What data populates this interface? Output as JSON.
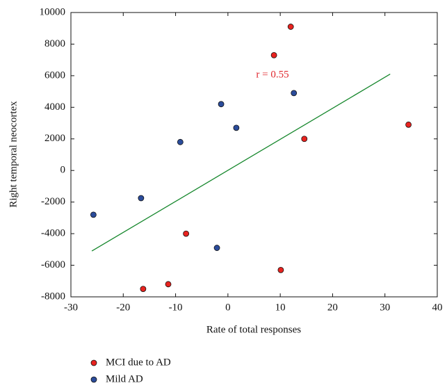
{
  "chart_data": {
    "type": "scatter",
    "xlabel": "Rate of total responses",
    "ylabel": "Right temporal neocortex",
    "annotation": "r = 0.55",
    "annotation_color": "#e0282e",
    "xlim": [
      -30,
      40
    ],
    "xticks": [
      -30,
      -20,
      -10,
      0,
      10,
      20,
      30,
      40
    ],
    "ylim": [
      -8000,
      10000
    ],
    "yticks": [
      -8000,
      -6000,
      -4000,
      -2000,
      0,
      2000,
      4000,
      6000,
      8000,
      10000
    ],
    "series": [
      {
        "name": "MCI due to AD",
        "color": "#e8231f",
        "x": [
          12,
          8.8,
          14.6,
          34.5,
          -8,
          10.1,
          -11.4,
          -16.2
        ],
        "values": [
          9100,
          7300,
          2000,
          2900,
          -4000,
          -6300,
          -7200,
          -7500
        ]
      },
      {
        "name": "Mild AD",
        "color": "#2b4c9b",
        "x": [
          -25.7,
          -16.6,
          -9.1,
          -1.3,
          1.6,
          12.6,
          -2.1
        ],
        "values": [
          -2800,
          -1750,
          1800,
          4200,
          2700,
          4900,
          -4900
        ]
      }
    ],
    "fit_line": {
      "color": "#16872c",
      "x": [
        -26,
        31
      ],
      "values": [
        -5100,
        6100
      ]
    }
  }
}
